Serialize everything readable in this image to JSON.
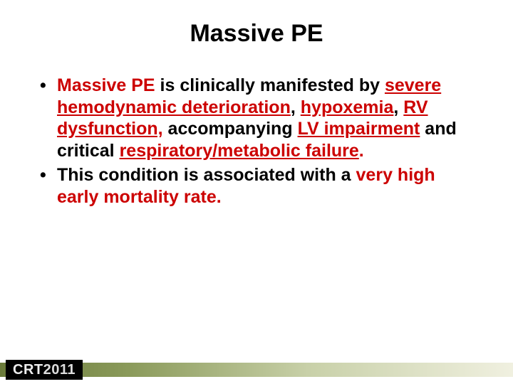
{
  "slide": {
    "title": "Massive PE",
    "title_color": "#000000",
    "title_fontsize": 34,
    "background_color": "#ffffff",
    "bullets": [
      {
        "runs": [
          {
            "text": "Massive  PE",
            "color": "#cc0000",
            "underline": false
          },
          {
            "text": " is clinically manifested by ",
            "color": "#000000",
            "underline": false
          },
          {
            "text": "severe hemodynamic deterioration",
            "color": "#cc0000",
            "underline": true
          },
          {
            "text": ", ",
            "color": "#000000",
            "underline": false
          },
          {
            "text": "hypoxemia",
            "color": "#cc0000",
            "underline": true
          },
          {
            "text": ", ",
            "color": "#000000",
            "underline": false
          },
          {
            "text": "RV dysfunction,",
            "color": "#cc0000",
            "underline": true
          },
          {
            "text": " accompanying ",
            "color": "#000000",
            "underline": false
          },
          {
            "text": "LV impairment",
            "color": "#cc0000",
            "underline": true
          },
          {
            "text": " and critical ",
            "color": "#000000",
            "underline": false
          },
          {
            "text": "respiratory/metabolic failure",
            "color": "#cc0000",
            "underline": true
          },
          {
            "text": ".",
            "color": "#cc0000",
            "underline": false
          }
        ]
      },
      {
        "runs": [
          {
            "text": "This condition is associated with a ",
            "color": "#000000",
            "underline": false
          },
          {
            "text": "very high early mortality rate.",
            "color": "#cc0000",
            "underline": false
          }
        ]
      }
    ],
    "body_fontsize": 25,
    "body_fontweight": "bold",
    "accent_color": "#cc0000"
  },
  "footer": {
    "logo_prefix": "CRT",
    "logo_year": "2011",
    "logo_bg": "#000000",
    "logo_fg": "#eeeeee",
    "bar_gradient_from": "#6a7a3a",
    "bar_gradient_to": "#f0f0e0"
  }
}
